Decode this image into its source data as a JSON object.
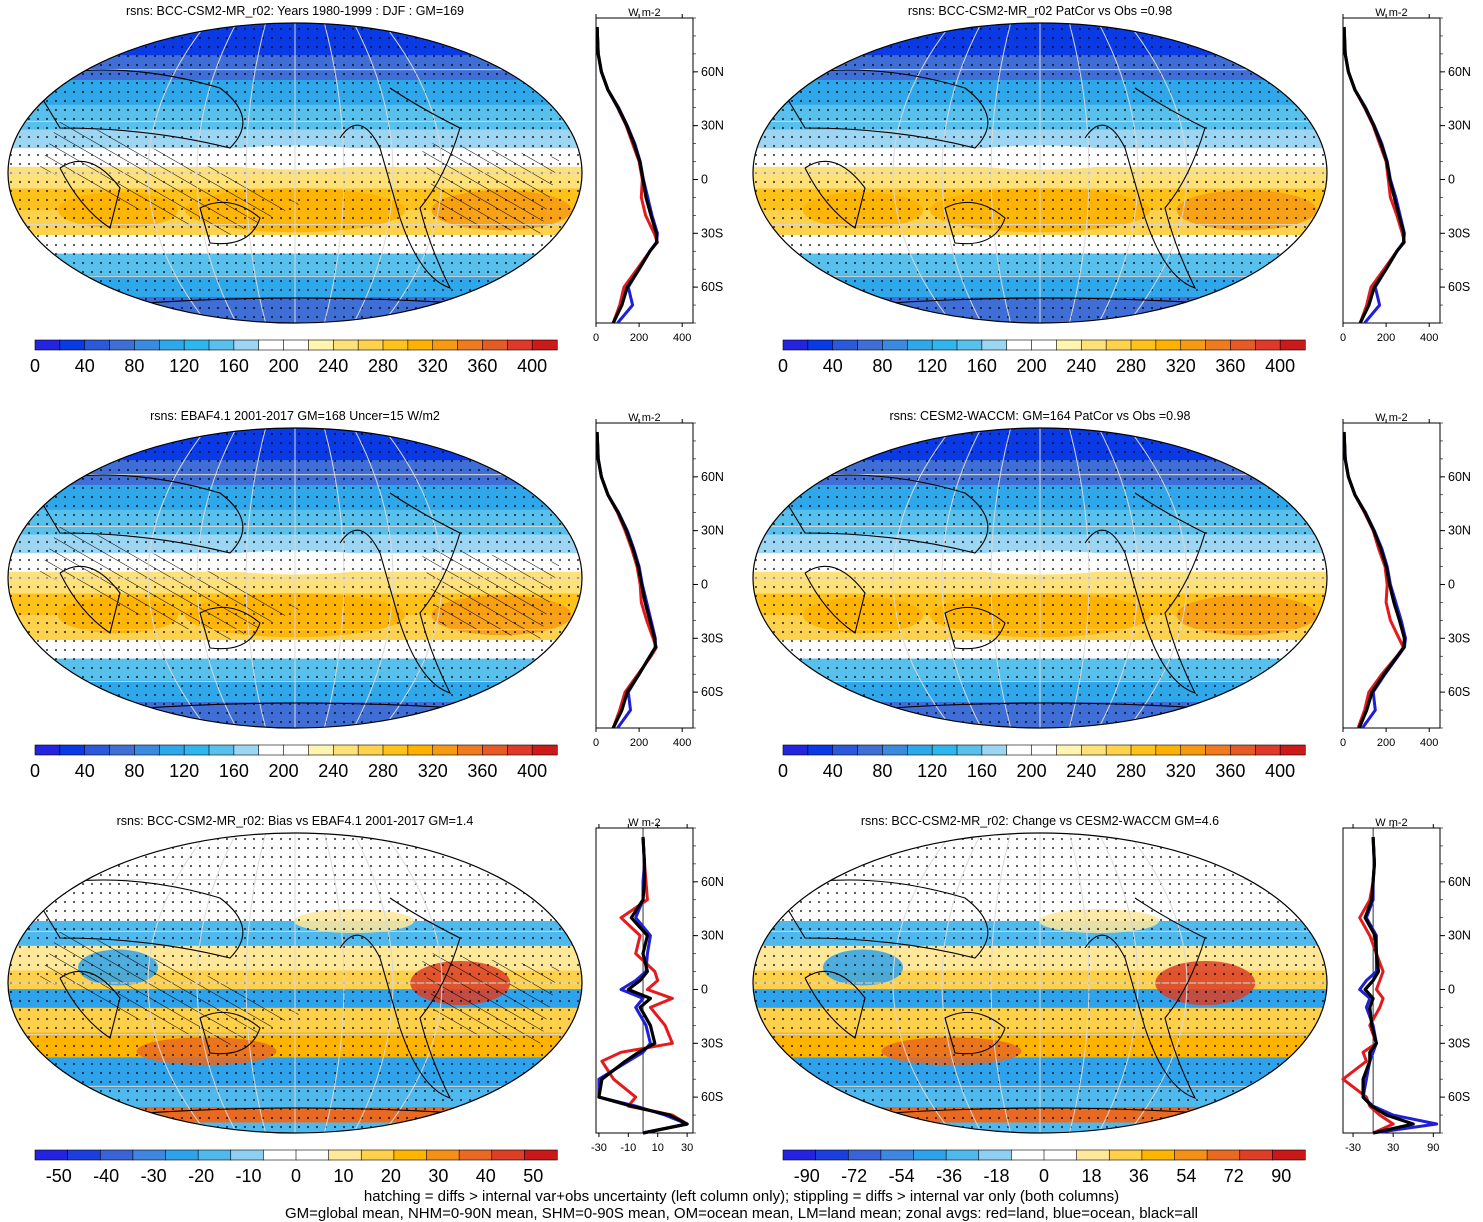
{
  "footer": {
    "line1": "hatching = diffs > internal var+obs uncertainty (left column only); stippling = diffs > internal var only (both columns)",
    "line2": "GM=global mean, NHM=0-90N mean, SHM=0-90S mean, OM=ocean mean, LM=land mean; zonal avgs: red=land, blue=ocean, black=all"
  },
  "colors": {
    "land": "#e41a1c",
    "ocean": "#1f1fd6",
    "all": "#000000",
    "abs_scale": [
      "#2424e0",
      "#0a3ae6",
      "#2a5ad9",
      "#3f6fd6",
      "#3a8be0",
      "#2ea8ea",
      "#2fb6ee",
      "#58c0ec",
      "#9cd6f2",
      "#ffffff",
      "#ffffff",
      "#fff4b0",
      "#ffe17a",
      "#ffd24d",
      "#ffc21a",
      "#ffb100",
      "#f79a12",
      "#ef7a20",
      "#e65a26",
      "#e0392a",
      "#cc1a1a"
    ],
    "diff_scale": [
      "#2424e0",
      "#1a3fdc",
      "#3a63d8",
      "#3e86e0",
      "#2ea2ea",
      "#4fb9ee",
      "#8fd0f2",
      "#ffffff",
      "#ffffff",
      "#ffe89a",
      "#ffd04a",
      "#ffb400",
      "#f49018",
      "#e86a22",
      "#dc3e26",
      "#c81818"
    ]
  },
  "chart_data": [
    {
      "type": "heatmap",
      "title": "rsns: BCC-CSM2-MR_r02: Years 1980-1999 : DJF : GM=169",
      "colorbar": {
        "labels": [
          "0",
          "40",
          "80",
          "120",
          "160",
          "200",
          "240",
          "280",
          "320",
          "360",
          "400"
        ],
        "min": 0,
        "max": 420
      },
      "profile": {
        "units": "W m-2",
        "xticks": [
          0,
          200,
          400
        ],
        "xlim": [
          0,
          450
        ],
        "lat_labels": [
          "60N",
          "30N",
          "0",
          "30S",
          "60S"
        ],
        "lat": [
          85,
          70,
          60,
          50,
          40,
          30,
          20,
          10,
          0,
          -10,
          -20,
          -30,
          -35,
          -40,
          -50,
          -60,
          -70,
          -80
        ],
        "series": [
          {
            "name": "land",
            "values": [
              5,
              10,
              25,
              55,
              100,
              140,
              170,
              200,
              215,
              210,
              230,
              270,
              285,
              250,
              190,
              130,
              110,
              80
            ]
          },
          {
            "name": "ocean",
            "values": [
              5,
              10,
              25,
              55,
              105,
              145,
              180,
              205,
              220,
              240,
              260,
              285,
              280,
              250,
              200,
              150,
              170,
              100
            ]
          },
          {
            "name": "all",
            "values": [
              5,
              10,
              25,
              55,
              103,
              143,
              176,
              203,
              218,
              232,
              255,
              280,
              282,
              250,
              200,
              145,
              120,
              80
            ]
          }
        ]
      }
    },
    {
      "type": "heatmap",
      "title": "rsns: BCC-CSM2-MR_r02 PatCor vs Obs =0.98",
      "colorbar": {
        "labels": [
          "0",
          "40",
          "80",
          "120",
          "160",
          "200",
          "240",
          "280",
          "320",
          "360",
          "400"
        ],
        "min": 0,
        "max": 420
      },
      "profile": {
        "units": "W m-2",
        "xticks": [
          0,
          200,
          400
        ],
        "xlim": [
          0,
          450
        ],
        "lat_labels": [
          "60N",
          "30N",
          "0",
          "30S",
          "60S"
        ],
        "lat": [
          85,
          70,
          60,
          50,
          40,
          30,
          20,
          10,
          0,
          -10,
          -20,
          -30,
          -35,
          -40,
          -50,
          -60,
          -70,
          -80
        ],
        "series": [
          {
            "name": "land",
            "values": [
              5,
              10,
              25,
              55,
              100,
              140,
              170,
              200,
              210,
              220,
              250,
              275,
              285,
              250,
              190,
              130,
              110,
              80
            ]
          },
          {
            "name": "ocean",
            "values": [
              5,
              10,
              25,
              55,
              105,
              145,
              180,
              205,
              220,
              245,
              265,
              285,
              280,
              250,
              200,
              150,
              170,
              100
            ]
          },
          {
            "name": "all",
            "values": [
              5,
              10,
              25,
              55,
              103,
              143,
              176,
              203,
              217,
              238,
              260,
              282,
              282,
              250,
              200,
              145,
              120,
              80
            ]
          }
        ]
      }
    },
    {
      "type": "heatmap",
      "title": "rsns: EBAF4.1 2001-2017 GM=168 Uncer=15 W/m2",
      "colorbar": {
        "labels": [
          "0",
          "40",
          "80",
          "120",
          "160",
          "200",
          "240",
          "280",
          "320",
          "360",
          "400"
        ],
        "min": 0,
        "max": 420
      },
      "profile": {
        "units": "W m-2",
        "xticks": [
          0,
          200,
          400
        ],
        "xlim": [
          0,
          450
        ],
        "lat_labels": [
          "60N",
          "30N",
          "0",
          "30S",
          "60S"
        ],
        "lat": [
          85,
          70,
          60,
          50,
          40,
          30,
          20,
          10,
          0,
          -10,
          -20,
          -30,
          -35,
          -40,
          -50,
          -60,
          -70,
          -80
        ],
        "series": [
          {
            "name": "land",
            "values": [
              5,
              10,
              25,
              55,
              100,
              135,
              165,
              190,
              205,
              210,
              235,
              265,
              280,
              255,
              195,
              135,
              110,
              80
            ]
          },
          {
            "name": "ocean",
            "values": [
              5,
              10,
              25,
              55,
              105,
              145,
              175,
              200,
              215,
              235,
              255,
              275,
              275,
              250,
              200,
              150,
              160,
              100
            ]
          },
          {
            "name": "all",
            "values": [
              5,
              10,
              25,
              55,
              103,
              141,
              171,
              196,
              212,
              228,
              250,
              272,
              276,
              250,
              200,
              145,
              120,
              80
            ]
          }
        ]
      }
    },
    {
      "type": "heatmap",
      "title": "rsns: CESM2-WACCM: GM=164 PatCor vs Obs =0.98",
      "colorbar": {
        "labels": [
          "0",
          "40",
          "80",
          "120",
          "160",
          "200",
          "240",
          "280",
          "320",
          "360",
          "400"
        ],
        "min": 0,
        "max": 420
      },
      "profile": {
        "units": "W m-2",
        "xticks": [
          0,
          200,
          400
        ],
        "xlim": [
          0,
          450
        ],
        "lat_labels": [
          "60N",
          "30N",
          "0",
          "30S",
          "60S"
        ],
        "lat": [
          85,
          70,
          60,
          50,
          40,
          30,
          20,
          10,
          0,
          -10,
          -20,
          -30,
          -35,
          -40,
          -50,
          -60,
          -70,
          -80
        ],
        "series": [
          {
            "name": "land",
            "values": [
              5,
              10,
              25,
              55,
              100,
              140,
              165,
              195,
              205,
              200,
              220,
              260,
              280,
              250,
              180,
              120,
              100,
              70
            ]
          },
          {
            "name": "ocean",
            "values": [
              5,
              10,
              25,
              55,
              105,
              145,
              180,
              205,
              220,
              245,
              270,
              290,
              285,
              255,
              195,
              140,
              150,
              90
            ]
          },
          {
            "name": "all",
            "values": [
              5,
              10,
              25,
              55,
              103,
              143,
              175,
              201,
              216,
              236,
              262,
              285,
              283,
              252,
              190,
              135,
              110,
              75
            ]
          }
        ]
      }
    },
    {
      "type": "heatmap",
      "title": "rsns: BCC-CSM2-MR_r02: Bias vs EBAF4.1 2001-2017 GM=1.4",
      "colorbar": {
        "labels": [
          "-50",
          "-40",
          "-30",
          "-20",
          "-10",
          "0",
          "10",
          "20",
          "30",
          "40",
          "50"
        ],
        "min": -55,
        "max": 55
      },
      "profile": {
        "units": "W m-2",
        "xticks": [
          -30,
          -10,
          10,
          30
        ],
        "xlim": [
          -32,
          34
        ],
        "lat_labels": [
          "60N",
          "30N",
          "0",
          "30S",
          "60S"
        ],
        "lat": [
          85,
          70,
          60,
          50,
          40,
          30,
          20,
          10,
          5,
          0,
          -5,
          -10,
          -20,
          -30,
          -35,
          -40,
          -50,
          -60,
          -65,
          -70,
          -75,
          -80
        ],
        "series": [
          {
            "name": "land",
            "values": [
              0,
              1,
              2,
              3,
              -15,
              -2,
              -5,
              8,
              10,
              3,
              20,
              5,
              15,
              20,
              -15,
              -28,
              -20,
              -5,
              -10,
              20,
              30,
              0
            ]
          },
          {
            "name": "ocean",
            "values": [
              0,
              1,
              0,
              0,
              -5,
              5,
              3,
              2,
              -5,
              -15,
              0,
              -5,
              2,
              5,
              0,
              -10,
              -30,
              -30,
              -5,
              15,
              30,
              0
            ]
          },
          {
            "name": "all",
            "values": [
              0,
              1,
              1,
              0,
              -8,
              3,
              0,
              3,
              -2,
              -10,
              5,
              -2,
              5,
              8,
              -3,
              -12,
              -28,
              -30,
              -8,
              18,
              30,
              0
            ]
          }
        ]
      }
    },
    {
      "type": "heatmap",
      "title": "rsns: BCC-CSM2-MR_r02: Change vs CESM2-WACCM GM=4.6",
      "colorbar": {
        "labels": [
          "-90",
          "-72",
          "-54",
          "-36",
          "-18",
          "0",
          "18",
          "36",
          "54",
          "72",
          "90"
        ],
        "min": -99,
        "max": 99
      },
      "profile": {
        "units": "W m-2",
        "xticks": [
          -30,
          30,
          90
        ],
        "xlim": [
          -45,
          100
        ],
        "lat_labels": [
          "60N",
          "30N",
          "0",
          "30S",
          "60S"
        ],
        "lat": [
          85,
          70,
          60,
          50,
          40,
          30,
          20,
          10,
          5,
          0,
          -5,
          -10,
          -20,
          -30,
          -35,
          -40,
          -50,
          -60,
          -65,
          -70,
          -75,
          -80
        ],
        "series": [
          {
            "name": "land",
            "values": [
              0,
              2,
              0,
              -5,
              -20,
              -5,
              5,
              15,
              10,
              5,
              15,
              10,
              -5,
              5,
              -15,
              -10,
              -45,
              -10,
              -5,
              10,
              30,
              0
            ]
          },
          {
            "name": "ocean",
            "values": [
              0,
              2,
              0,
              0,
              -10,
              5,
              5,
              5,
              -10,
              -20,
              -5,
              -10,
              0,
              5,
              0,
              -5,
              -10,
              -15,
              0,
              30,
              95,
              0
            ]
          },
          {
            "name": "all",
            "values": [
              0,
              2,
              0,
              -2,
              -12,
              3,
              5,
              8,
              0,
              -12,
              0,
              -5,
              -2,
              5,
              -5,
              -5,
              -15,
              -15,
              -2,
              20,
              60,
              0
            ]
          }
        ]
      }
    }
  ]
}
